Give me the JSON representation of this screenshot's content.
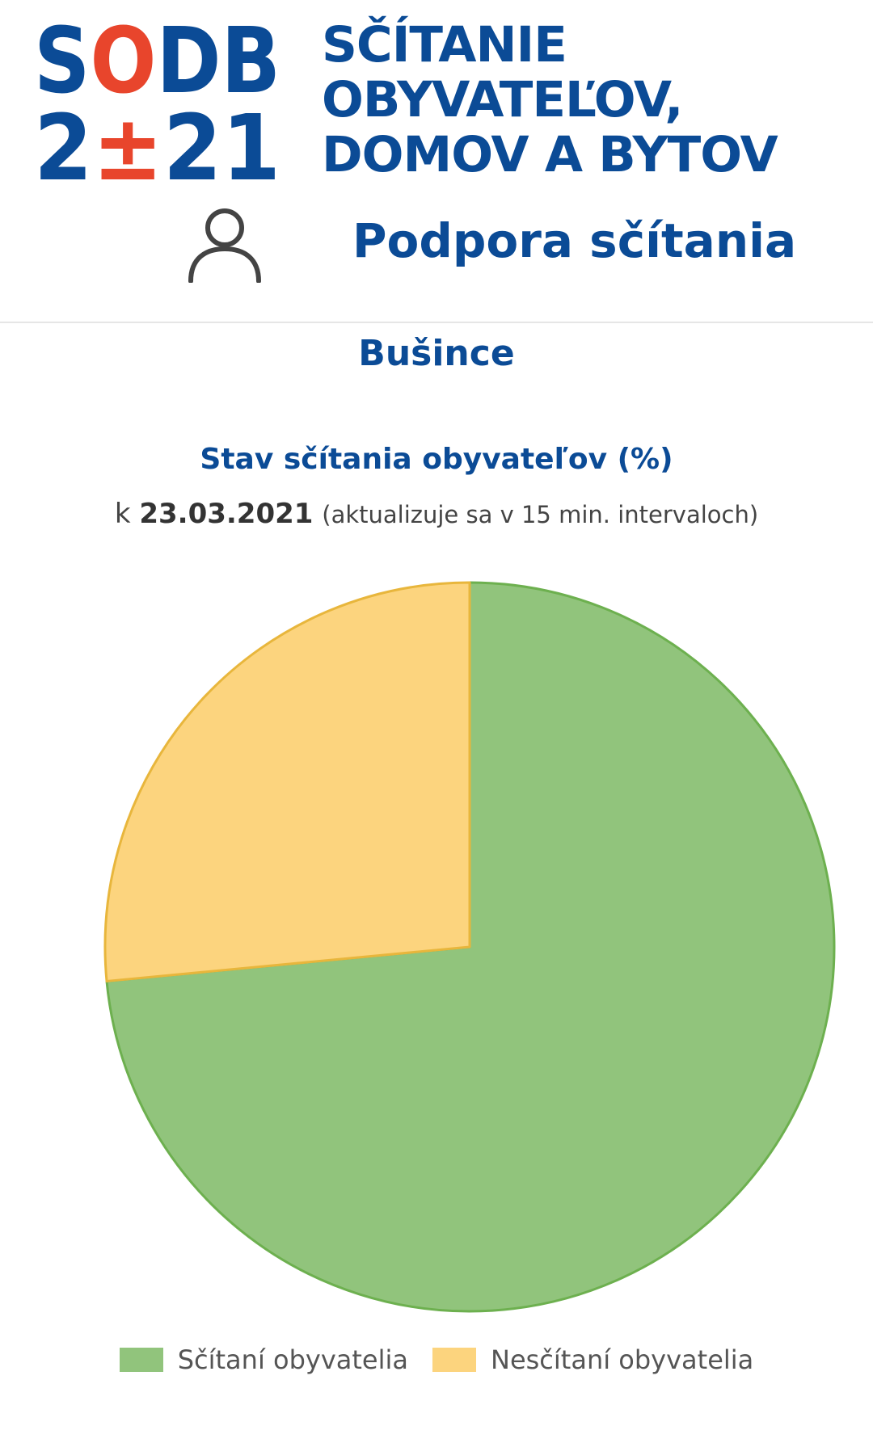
{
  "header": {
    "logo": {
      "line1": "SODB",
      "line2": "2±21",
      "text_lines": [
        "SČÍTANIE",
        "OBYVATEĽOV,",
        "DOMOV A BYTOV"
      ],
      "colors": {
        "blue": "#0b4b96",
        "red": "#e8452c"
      }
    },
    "user_icon": "user-icon",
    "title": "Podpora sčítania"
  },
  "municipality": "Bušince",
  "chart_data": {
    "type": "pie",
    "title": "Stav sčítania obyvateľov (%)",
    "subtitle_prefix": "k",
    "subtitle_date": "23.03.2021",
    "subtitle_note": "(aktualizuje sa v 15 min. intervaloch)",
    "categories": [
      "Sčítaní obyvatelia",
      "Nesčítaní obyvatelia"
    ],
    "values": [
      73.5,
      26.5
    ],
    "colors": [
      "#91c47c",
      "#fcd47e"
    ],
    "stroke_colors": [
      "#6db04f",
      "#e8b63c"
    ],
    "start_angle_deg": 0,
    "legend_position": "bottom"
  }
}
